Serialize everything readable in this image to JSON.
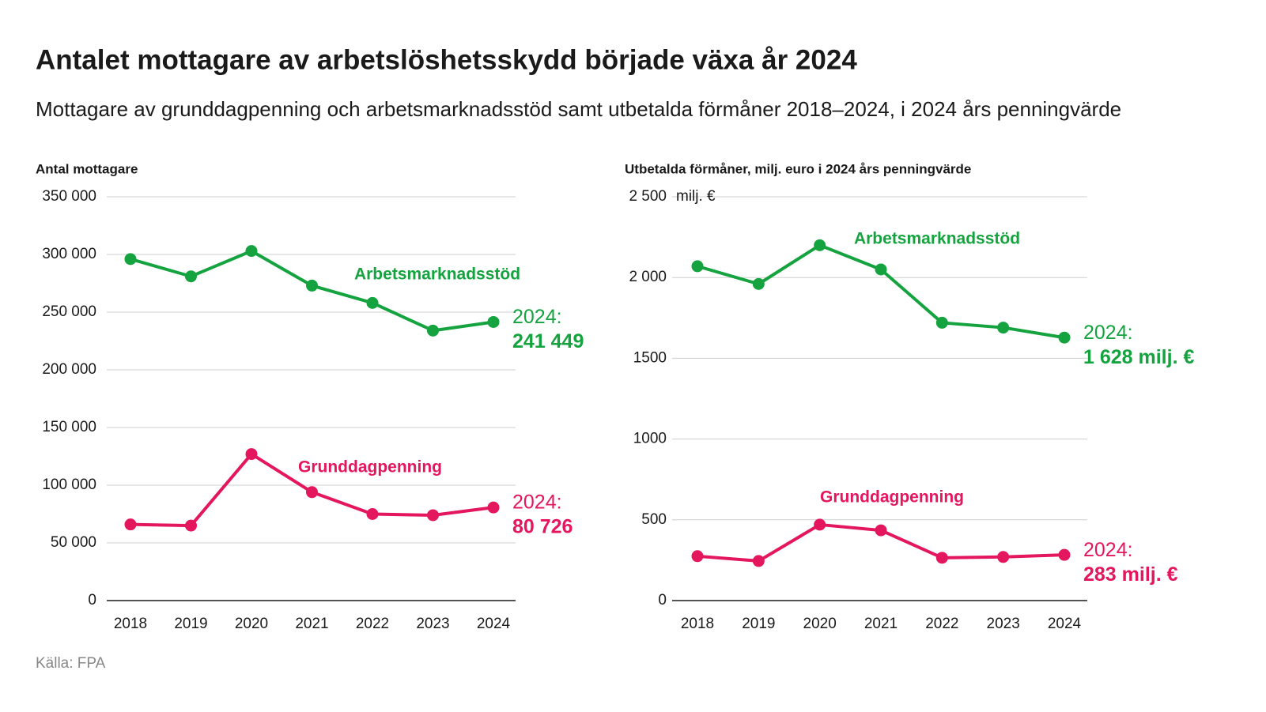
{
  "title": "Antalet mottagare av arbetslöshetsskydd började växa år 2024",
  "subtitle": "Mottagare av grunddagpenning och arbetsmarknadsstöd samt utbetalda förmåner 2018–2024, i 2024 års penningvärde",
  "source": "Källa: FPA",
  "chart_data": [
    {
      "type": "line",
      "y_label": "Antal mottagare",
      "categories": [
        "2018",
        "2019",
        "2020",
        "2021",
        "2022",
        "2023",
        "2024"
      ],
      "ylim": [
        0,
        350000
      ],
      "yticks": [
        0,
        {
          "value": 50000,
          "label": "50 000"
        },
        {
          "value": 100000,
          "label": "100 000"
        },
        {
          "value": 150000,
          "label": "150 000"
        },
        {
          "value": 200000,
          "label": "200 000"
        },
        {
          "value": 250000,
          "label": "250 000"
        },
        {
          "value": 300000,
          "label": "300 000"
        },
        {
          "value": 350000,
          "label": "350 000"
        }
      ],
      "grid": true,
      "series": [
        {
          "name": "Arbetsmarknadsstöd",
          "color": "#15a33f",
          "values": [
            296000,
            281000,
            303000,
            273000,
            258000,
            234000,
            241449
          ],
          "value_labels": [
            null,
            null,
            null,
            null,
            null,
            null,
            "241 449"
          ],
          "end_label_prefix": "2024:"
        },
        {
          "name": "Grunddagpenning",
          "color": "#e3165e",
          "values": [
            66000,
            65000,
            127000,
            94000,
            75000,
            74000,
            80726
          ],
          "value_labels": [
            null,
            null,
            null,
            null,
            null,
            null,
            "80 726"
          ],
          "end_label_prefix": "2024:"
        }
      ]
    },
    {
      "type": "line",
      "y_label": "Utbetalda förmåner, milj. euro i 2024 års penningvärde",
      "y_unit": "milj. €",
      "categories": [
        "2018",
        "2019",
        "2020",
        "2021",
        "2022",
        "2023",
        "2024"
      ],
      "ylim": [
        0,
        2500
      ],
      "yticks": [
        0,
        500,
        1000,
        1500,
        {
          "value": 2000,
          "label": "2 000"
        },
        {
          "value": 2500,
          "label": "2 500"
        }
      ],
      "grid": true,
      "series": [
        {
          "name": "Arbetsmarknadsstöd",
          "color": "#15a33f",
          "values": [
            2070,
            1960,
            2200,
            2050,
            1720,
            1690,
            1628
          ],
          "value_labels": [
            null,
            null,
            null,
            null,
            null,
            null,
            "1 628 milj. €"
          ],
          "end_label_prefix": "2024:"
        },
        {
          "name": "Grunddagpenning",
          "color": "#e3165e",
          "values": [
            275,
            245,
            470,
            435,
            265,
            270,
            283
          ],
          "value_labels": [
            null,
            null,
            null,
            null,
            null,
            null,
            "283 milj. €"
          ],
          "end_label_prefix": "2024:"
        }
      ]
    }
  ]
}
